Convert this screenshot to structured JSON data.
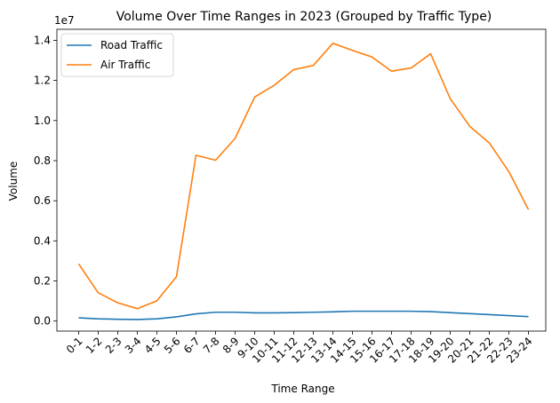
{
  "chart_data": {
    "type": "line",
    "title": "Volume Over Time Ranges in 2023 (Grouped by Traffic Type)",
    "xlabel": "Time Range",
    "ylabel": "Volume",
    "y_scale_label": "1e7",
    "ylim": [
      -0.05,
      1.455
    ],
    "yticks": [
      0.0,
      0.2,
      0.4,
      0.6,
      0.8,
      1.0,
      1.2,
      1.4
    ],
    "ytick_labels": [
      "0.0",
      "0.2",
      "0.4",
      "0.6",
      "0.8",
      "1.0",
      "1.2",
      "1.4"
    ],
    "grid": false,
    "legend_position": "top-left",
    "categories": [
      "0-1",
      "1-2",
      "2-3",
      "3-4",
      "4-5",
      "5-6",
      "6-7",
      "7-8",
      "8-9",
      "9-10",
      "10-11",
      "11-12",
      "12-13",
      "13-14",
      "14-15",
      "15-16",
      "16-17",
      "17-18",
      "18-19",
      "19-20",
      "20-21",
      "21-22",
      "22-23",
      "23-24"
    ],
    "series": [
      {
        "name": "Road Traffic",
        "color": "#1f77b4",
        "values": [
          0.016,
          0.011,
          0.009,
          0.008,
          0.011,
          0.021,
          0.036,
          0.044,
          0.044,
          0.041,
          0.041,
          0.042,
          0.044,
          0.046,
          0.049,
          0.049,
          0.049,
          0.049,
          0.047,
          0.042,
          0.037,
          0.032,
          0.027,
          0.022
        ]
      },
      {
        "name": "Air Traffic",
        "color": "#ff7f0e",
        "values": [
          0.285,
          0.141,
          0.091,
          0.062,
          0.101,
          0.221,
          0.827,
          0.802,
          0.911,
          1.117,
          1.176,
          1.254,
          1.275,
          1.385,
          1.35,
          1.317,
          1.246,
          1.262,
          1.333,
          1.109,
          0.971,
          0.888,
          0.745,
          0.556
        ]
      }
    ]
  }
}
